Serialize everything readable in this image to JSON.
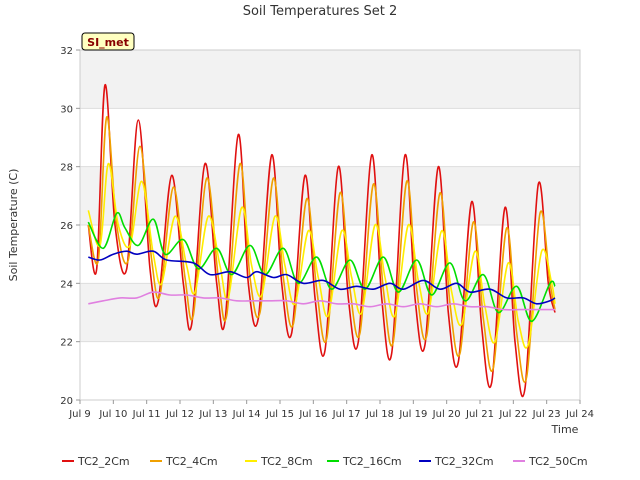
{
  "chart_data": {
    "type": "line",
    "title": "Soil Temperatures Set 2",
    "xlabel": "Time",
    "ylabel": "Soil Temperature (C)",
    "badge": "SI_met",
    "xlim": [
      9,
      24
    ],
    "ylim": [
      20,
      32
    ],
    "x_ticks": [
      {
        "v": 9,
        "label": "Jul 9"
      },
      {
        "v": 10,
        "label": "Jul 10"
      },
      {
        "v": 11,
        "label": "Jul 11"
      },
      {
        "v": 12,
        "label": "Jul 12"
      },
      {
        "v": 13,
        "label": "Jul 13"
      },
      {
        "v": 14,
        "label": "Jul 14"
      },
      {
        "v": 15,
        "label": "Jul 15"
      },
      {
        "v": 16,
        "label": "Jul 16"
      },
      {
        "v": 17,
        "label": "Jul 17"
      },
      {
        "v": 18,
        "label": "Jul 18"
      },
      {
        "v": 19,
        "label": "Jul 19"
      },
      {
        "v": 20,
        "label": "Jul 20"
      },
      {
        "v": 21,
        "label": "Jul 21"
      },
      {
        "v": 22,
        "label": "Jul 22"
      },
      {
        "v": 23,
        "label": "Jul 23"
      },
      {
        "v": 24,
        "label": "Jul 24"
      }
    ],
    "y_ticks": [
      {
        "v": 20,
        "label": "20"
      },
      {
        "v": 22,
        "label": "22"
      },
      {
        "v": 24,
        "label": "24"
      },
      {
        "v": 26,
        "label": "26"
      },
      {
        "v": 28,
        "label": "28"
      },
      {
        "v": 30,
        "label": "30"
      },
      {
        "v": 32,
        "label": "32"
      }
    ],
    "grid": true,
    "legend_position": "bottom",
    "series": [
      {
        "name": "TC2_2Cm",
        "color": "#e01010",
        "x": [
          9.25,
          9.5,
          9.75,
          10.05,
          10.4,
          10.75,
          11.1,
          11.35,
          11.75,
          12.1,
          12.35,
          12.75,
          13.1,
          13.35,
          13.75,
          14.05,
          14.35,
          14.75,
          15.05,
          15.35,
          15.75,
          16.05,
          16.35,
          16.75,
          17.05,
          17.35,
          17.75,
          18.05,
          18.35,
          18.75,
          19.05,
          19.35,
          19.75,
          20.05,
          20.35,
          20.75,
          21.05,
          21.35,
          21.75,
          22.05,
          22.35,
          22.75,
          23.05,
          23.25
        ],
        "y": [
          26.0,
          24.5,
          30.8,
          26.0,
          24.5,
          29.6,
          24.5,
          23.4,
          27.7,
          24.0,
          22.6,
          28.1,
          24.0,
          22.7,
          29.1,
          24.0,
          22.8,
          28.4,
          24.0,
          22.3,
          27.7,
          23.5,
          21.7,
          28.0,
          23.5,
          22.0,
          28.4,
          23.5,
          21.6,
          28.4,
          23.5,
          21.9,
          28.0,
          23.0,
          21.3,
          26.8,
          22.5,
          20.6,
          26.6,
          22.0,
          20.4,
          27.4,
          24.0,
          23.0
        ]
      },
      {
        "name": "TC2_4Cm",
        "color": "#f0a000",
        "x": [
          9.25,
          9.55,
          9.8,
          10.1,
          10.45,
          10.8,
          11.15,
          11.4,
          11.8,
          12.15,
          12.4,
          12.8,
          13.15,
          13.4,
          13.8,
          14.1,
          14.4,
          14.8,
          15.1,
          15.4,
          15.8,
          16.1,
          16.4,
          16.8,
          17.1,
          17.4,
          17.8,
          18.1,
          18.4,
          18.8,
          19.1,
          19.4,
          19.8,
          20.1,
          20.4,
          20.8,
          21.1,
          21.4,
          21.8,
          22.1,
          22.4,
          22.8,
          23.1,
          23.25
        ],
        "y": [
          26.0,
          24.8,
          29.7,
          26.0,
          24.8,
          28.7,
          24.8,
          23.6,
          27.3,
          24.2,
          22.9,
          27.6,
          24.2,
          22.9,
          28.1,
          24.2,
          23.0,
          27.6,
          24.2,
          22.6,
          26.9,
          23.8,
          22.1,
          27.1,
          23.8,
          22.3,
          27.4,
          23.8,
          22.0,
          27.5,
          23.8,
          22.2,
          27.1,
          23.3,
          21.6,
          26.1,
          22.8,
          21.1,
          25.9,
          22.3,
          20.8,
          26.4,
          24.0,
          23.1
        ]
      },
      {
        "name": "TC2_8Cm",
        "color": "#ffee00",
        "x": [
          9.25,
          9.6,
          9.85,
          10.15,
          10.5,
          10.85,
          11.2,
          11.45,
          11.85,
          12.2,
          12.45,
          12.85,
          13.2,
          13.45,
          13.85,
          14.15,
          14.45,
          14.85,
          15.15,
          15.45,
          15.85,
          16.15,
          16.45,
          16.85,
          17.15,
          17.45,
          17.85,
          18.15,
          18.45,
          18.85,
          19.15,
          19.45,
          19.85,
          20.15,
          20.45,
          20.85,
          21.15,
          21.45,
          21.85,
          22.15,
          22.45,
          22.85,
          23.15,
          23.25
        ],
        "y": [
          26.5,
          25.3,
          28.1,
          26.0,
          25.3,
          27.5,
          25.0,
          24.0,
          26.3,
          24.6,
          23.7,
          26.3,
          24.6,
          23.5,
          26.6,
          24.6,
          23.6,
          26.3,
          24.6,
          23.3,
          25.8,
          24.2,
          22.9,
          25.8,
          24.2,
          23.0,
          26.0,
          24.2,
          22.9,
          26.0,
          24.1,
          23.0,
          25.8,
          23.7,
          22.6,
          25.1,
          23.2,
          22.0,
          24.7,
          22.7,
          21.9,
          25.1,
          24.0,
          23.3
        ]
      },
      {
        "name": "TC2_16Cm",
        "color": "#00dd00",
        "x": [
          9.25,
          9.7,
          10.1,
          10.35,
          10.75,
          11.2,
          11.55,
          12.1,
          12.55,
          13.1,
          13.55,
          14.1,
          14.55,
          15.1,
          15.55,
          16.1,
          16.55,
          17.1,
          17.55,
          18.1,
          18.55,
          19.1,
          19.55,
          20.1,
          20.55,
          21.1,
          21.55,
          22.1,
          22.55,
          23.1,
          23.25
        ],
        "y": [
          26.1,
          25.2,
          26.4,
          25.9,
          25.3,
          26.2,
          25.0,
          25.5,
          24.5,
          25.2,
          24.3,
          25.3,
          24.3,
          25.2,
          24.0,
          24.9,
          23.8,
          24.8,
          23.8,
          24.9,
          23.7,
          24.8,
          23.6,
          24.7,
          23.4,
          24.3,
          23.0,
          23.9,
          22.7,
          24.0,
          23.9
        ]
      },
      {
        "name": "TC2_32Cm",
        "color": "#0000c0",
        "x": [
          9.25,
          9.6,
          10.0,
          10.4,
          10.7,
          11.2,
          11.6,
          12.4,
          12.9,
          13.5,
          14.0,
          14.3,
          14.8,
          15.2,
          15.7,
          16.3,
          16.8,
          17.3,
          17.8,
          18.3,
          18.7,
          19.3,
          19.8,
          20.3,
          20.7,
          21.3,
          21.8,
          22.3,
          22.7,
          23.1,
          23.25
        ],
        "y": [
          24.9,
          24.8,
          25.0,
          25.1,
          25.0,
          25.1,
          24.8,
          24.7,
          24.3,
          24.4,
          24.2,
          24.4,
          24.2,
          24.3,
          24.0,
          24.1,
          23.8,
          23.9,
          23.8,
          24.0,
          23.8,
          24.1,
          23.8,
          24.0,
          23.7,
          23.8,
          23.5,
          23.5,
          23.3,
          23.4,
          23.5
        ]
      },
      {
        "name": "TC2_50Cm",
        "color": "#e080e0",
        "x": [
          9.25,
          9.7,
          10.2,
          10.7,
          11.2,
          11.7,
          12.2,
          12.7,
          13.2,
          13.7,
          14.2,
          14.7,
          15.2,
          15.7,
          16.2,
          16.7,
          17.2,
          17.7,
          18.2,
          18.7,
          19.2,
          19.7,
          20.2,
          20.7,
          21.2,
          21.7,
          22.2,
          22.7,
          23.25
        ],
        "y": [
          23.3,
          23.4,
          23.5,
          23.5,
          23.7,
          23.6,
          23.6,
          23.5,
          23.5,
          23.4,
          23.4,
          23.4,
          23.4,
          23.3,
          23.4,
          23.3,
          23.3,
          23.2,
          23.3,
          23.2,
          23.3,
          23.2,
          23.3,
          23.2,
          23.2,
          23.1,
          23.1,
          23.1,
          23.1
        ]
      }
    ]
  }
}
